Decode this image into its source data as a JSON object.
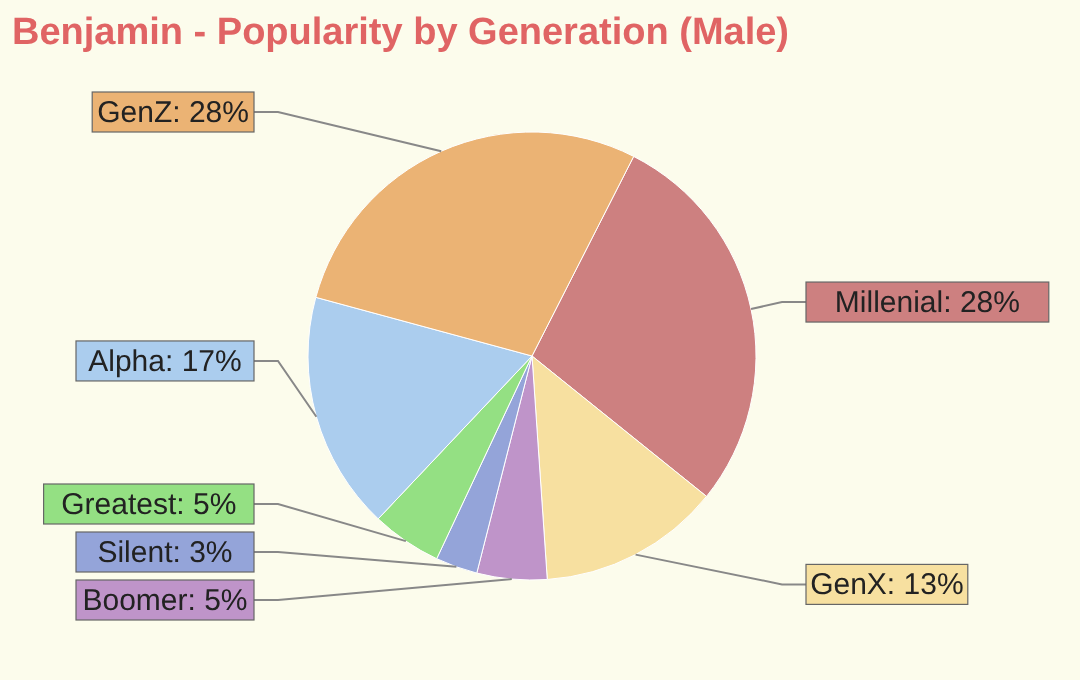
{
  "chart_data": {
    "type": "pie",
    "title": "Benjamin - Popularity by Generation (Male)",
    "categories": [
      "Millenial",
      "GenX",
      "Boomer",
      "Silent",
      "Greatest",
      "Alpha",
      "GenZ"
    ],
    "values": [
      28,
      13,
      5,
      3,
      5,
      17,
      28
    ],
    "colors": [
      "#cd8080",
      "#f7e0a0",
      "#bf94c9",
      "#94a4d9",
      "#94e083",
      "#abcdee",
      "#ebb374"
    ],
    "value_labels": [
      "28%",
      "13%",
      "5%",
      "3%",
      "5%",
      "17%",
      "28%"
    ]
  }
}
